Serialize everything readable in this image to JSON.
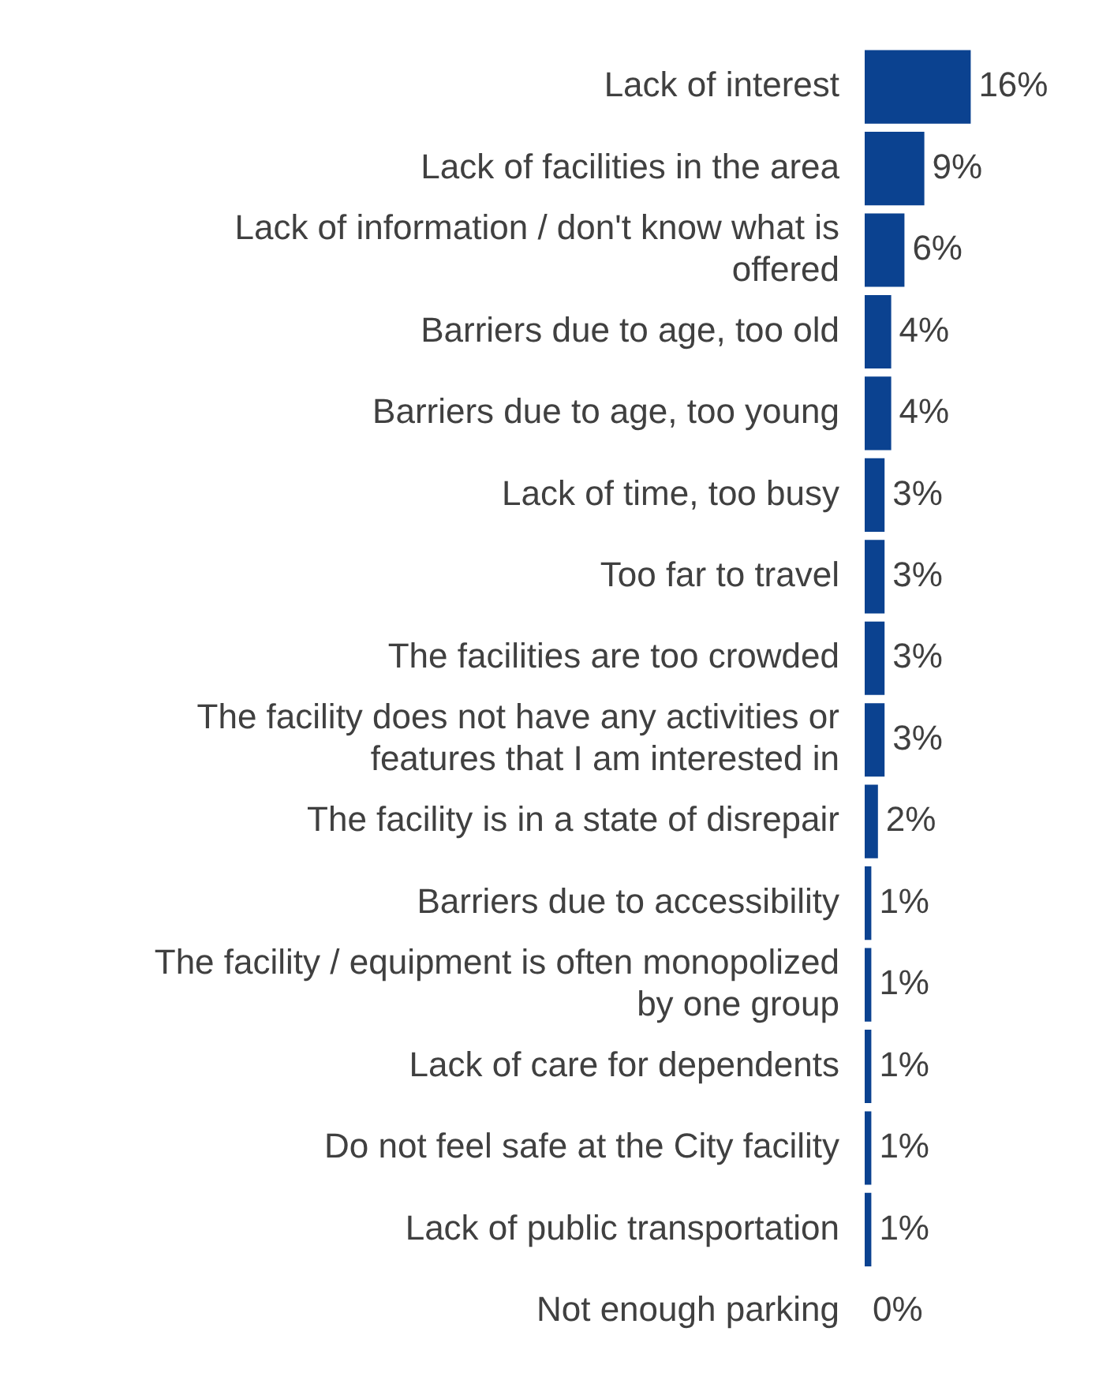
{
  "chart_data": {
    "type": "bar",
    "orientation": "horizontal",
    "categories": [
      "Lack of interest",
      "Lack of facilities in the area",
      "Lack of information / don't know what is offered",
      "Barriers due to age, too old",
      "Barriers due to age, too young",
      "Lack of time, too busy",
      "Too far to travel",
      "The facilities are too crowded",
      "The facility does not have any activities or features that I am interested in",
      "The facility is in a state of disrepair",
      "Barriers due to accessibility",
      "The facility / equipment is often monopolized by one group",
      "Lack of care for dependents",
      "Do not feel safe at the City facility",
      "Lack of public transportation",
      "Not enough parking"
    ],
    "values": [
      16,
      9,
      6,
      4,
      4,
      3,
      3,
      3,
      3,
      2,
      1,
      1,
      1,
      1,
      1,
      0
    ],
    "value_labels": [
      "16%",
      "9%",
      "6%",
      "4%",
      "4%",
      "3%",
      "3%",
      "3%",
      "3%",
      "2%",
      "1%",
      "1%",
      "1%",
      "1%",
      "1%",
      "0%"
    ],
    "color": "#0b4290",
    "legend": false
  }
}
